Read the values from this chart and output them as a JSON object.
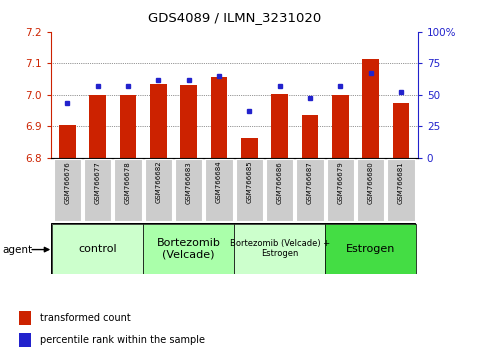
{
  "title": "GDS4089 / ILMN_3231020",
  "samples": [
    "GSM766676",
    "GSM766677",
    "GSM766678",
    "GSM766682",
    "GSM766683",
    "GSM766684",
    "GSM766685",
    "GSM766686",
    "GSM766687",
    "GSM766679",
    "GSM766680",
    "GSM766681"
  ],
  "transformed_count": [
    6.905,
    7.0,
    7.0,
    7.035,
    7.03,
    7.055,
    6.862,
    7.003,
    6.935,
    7.0,
    7.115,
    6.975
  ],
  "percentile_rank": [
    43,
    57,
    57,
    62,
    62,
    65,
    37,
    57,
    47,
    57,
    67,
    52
  ],
  "ylim_left": [
    6.8,
    7.2
  ],
  "ylim_right": [
    0,
    100
  ],
  "yticks_left": [
    6.8,
    6.9,
    7.0,
    7.1,
    7.2
  ],
  "yticks_right": [
    0,
    25,
    50,
    75,
    100
  ],
  "bar_color": "#cc2200",
  "dot_color": "#2222cc",
  "bar_bottom": 6.8,
  "groups": [
    {
      "label": "control",
      "start": 0,
      "end": 3,
      "color": "#ccffcc",
      "fontsize": 8
    },
    {
      "label": "Bortezomib\n(Velcade)",
      "start": 3,
      "end": 6,
      "color": "#aaffaa",
      "fontsize": 8
    },
    {
      "label": "Bortezomib (Velcade) +\nEstrogen",
      "start": 6,
      "end": 9,
      "color": "#ccffcc",
      "fontsize": 6
    },
    {
      "label": "Estrogen",
      "start": 9,
      "end": 12,
      "color": "#44dd44",
      "fontsize": 8
    }
  ],
  "agent_label": "agent",
  "legend_bar_label": "transformed count",
  "legend_dot_label": "percentile rank within the sample",
  "grid_color": "#333333",
  "axis_color_left": "#cc2200",
  "axis_color_right": "#2222cc",
  "tick_bg_color": "#cccccc"
}
